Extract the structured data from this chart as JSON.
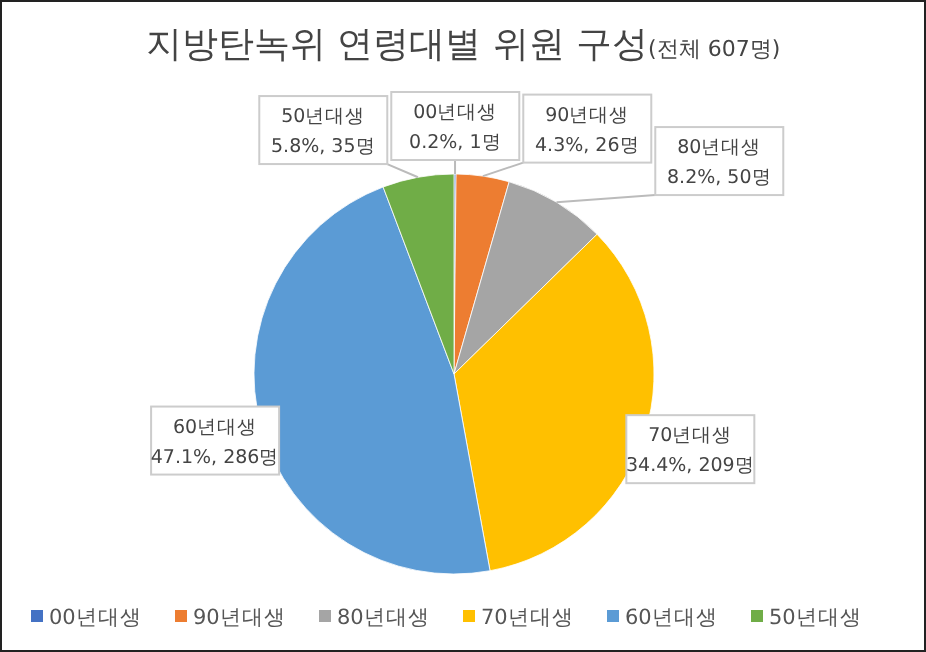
{
  "chart_data": {
    "type": "pie",
    "title": "지방탄녹위 연령대별 위원 구성",
    "subtitle": "(전체 607명)",
    "categories": [
      "00년대생",
      "90년대생",
      "80년대생",
      "70년대생",
      "60년대생",
      "50년대생"
    ],
    "values": [
      1,
      26,
      50,
      209,
      286,
      35
    ],
    "value_labels": [
      "0.2%, 1명",
      "4.3%, 26명",
      "8.2%, 50명",
      "34.4%, 209명",
      "47.1%, 286명",
      "5.8%, 35명"
    ],
    "colors": [
      "#4472c4",
      "#ed7d31",
      "#a5a5a5",
      "#ffc000",
      "#5b9bd5",
      "#70ad47"
    ],
    "legend": "bottom"
  }
}
